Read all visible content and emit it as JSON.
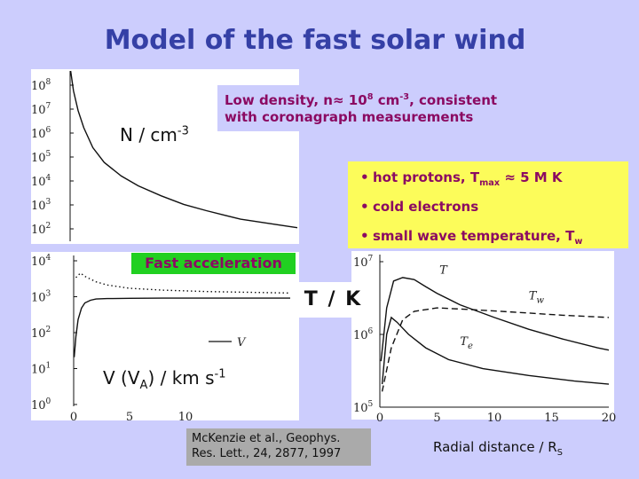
{
  "title": "Model of the fast solar wind",
  "density_note": {
    "line1_pre": "Low density, n",
    "approx": "≈",
    "line1_num": " 10",
    "line1_exp": "8",
    "line1_unit": " cm",
    "line1_unit_exp": "-3",
    "line1_post": ", consistent",
    "line2": "with coronagraph measurements"
  },
  "bullets": {
    "b1_pre": "hot protons, T",
    "b1_sub": "max",
    "b1_approx": " ≈",
    "b1_post": " 5 M K",
    "b2": "cold electrons",
    "b3_pre": "small wave temperature, T",
    "b3_sub": "w"
  },
  "fast_acceleration": "Fast acceleration",
  "tk_label": "T / K",
  "reference": {
    "line1": "McKenzie et al., Geophys.",
    "line2": "Res. Lett., 24, 2877, 1997"
  },
  "radial_label": {
    "text": "Radial distance / R",
    "sub": "S"
  },
  "n_label": {
    "text": "N / cm",
    "exp": "-3"
  },
  "v_label": {
    "pre": "V (V",
    "sub": "A",
    "post": ") / km s",
    "exp": "-1"
  },
  "colors": {
    "background": "#cccdfd",
    "title": "#3540a6",
    "note_text": "#8b0a62",
    "yellow_box": "#fcfc5a",
    "green_box": "#21d021",
    "ref_box": "#aaaaaa"
  },
  "chart_data": [
    {
      "type": "line",
      "panel": "density",
      "ylabel": "N / cm-3",
      "y_scale": "log",
      "y_ticks": [
        "10^8",
        "10^7",
        "10^6",
        "10^5",
        "10^4",
        "10^3",
        "10^2"
      ],
      "ylim": [
        100,
        100000000
      ],
      "xlim": [
        0,
        20
      ],
      "series": [
        {
          "style": "solid",
          "x": [
            0.05,
            0.3,
            0.7,
            1.2,
            2,
            3,
            4.5,
            6,
            8,
            10,
            12,
            15,
            20
          ],
          "y": [
            100000000,
            20000000,
            4000000,
            1000000,
            200000,
            60000,
            20000,
            9000,
            4000,
            2000,
            1200,
            600,
            300
          ]
        }
      ]
    },
    {
      "type": "line",
      "panel": "velocity",
      "ylabel": "V (VA) / km s-1",
      "y_scale": "log",
      "y_ticks": [
        "10^4",
        "10^3",
        "10^2",
        "10^1",
        "10^0"
      ],
      "x_ticks": [
        "0",
        "5",
        "10"
      ],
      "xlim": [
        0,
        20
      ],
      "ylim": [
        1,
        10000
      ],
      "series": [
        {
          "name": "V",
          "style": "solid",
          "x": [
            0.05,
            0.2,
            0.4,
            0.7,
            1,
            1.5,
            2,
            3,
            5,
            8,
            12,
            16,
            20
          ],
          "y": [
            20,
            70,
            200,
            400,
            550,
            650,
            700,
            720,
            730,
            740,
            740,
            740,
            740
          ]
        },
        {
          "style": "dotted",
          "x": [
            0.2,
            0.6,
            1,
            2,
            3,
            5,
            8,
            12,
            16,
            20
          ],
          "y": [
            2600,
            3400,
            2800,
            2000,
            1650,
            1350,
            1200,
            1100,
            1050,
            1000
          ]
        }
      ]
    },
    {
      "type": "line",
      "panel": "temperature",
      "ylabel": "T / K",
      "y_scale": "log",
      "y_ticks": [
        "10^7",
        "10^6",
        "10^5"
      ],
      "x_ticks": [
        "0",
        "5",
        "10",
        "15",
        "20"
      ],
      "xlabel": "Radial distance / RS",
      "xlim": [
        0,
        20
      ],
      "ylim": [
        100000,
        10000000
      ],
      "series": [
        {
          "name": "T",
          "style": "solid",
          "x": [
            0.1,
            0.6,
            1.2,
            2,
            3,
            4,
            5,
            7,
            10,
            13,
            16,
            19,
            20
          ],
          "y": [
            400000,
            2000000,
            4500000,
            5000000,
            4700000,
            3800000,
            3100000,
            2200000,
            1500000,
            1050000,
            780000,
            600000,
            560000
          ]
        },
        {
          "name": "Tw",
          "style": "dashed",
          "x": [
            0.2,
            1,
            2,
            3,
            5,
            8,
            12,
            16,
            20
          ],
          "y": [
            160000,
            600000,
            1400000,
            1800000,
            2000000,
            1900000,
            1750000,
            1600000,
            1500000
          ]
        },
        {
          "name": "Te",
          "style": "solid",
          "x": [
            0.2,
            0.6,
            1,
            1.5,
            2.5,
            4,
            6,
            9,
            13,
            17,
            20
          ],
          "y": [
            200000,
            900000,
            1500000,
            1300000,
            900000,
            600000,
            420000,
            320000,
            260000,
            220000,
            200000
          ]
        }
      ]
    }
  ]
}
